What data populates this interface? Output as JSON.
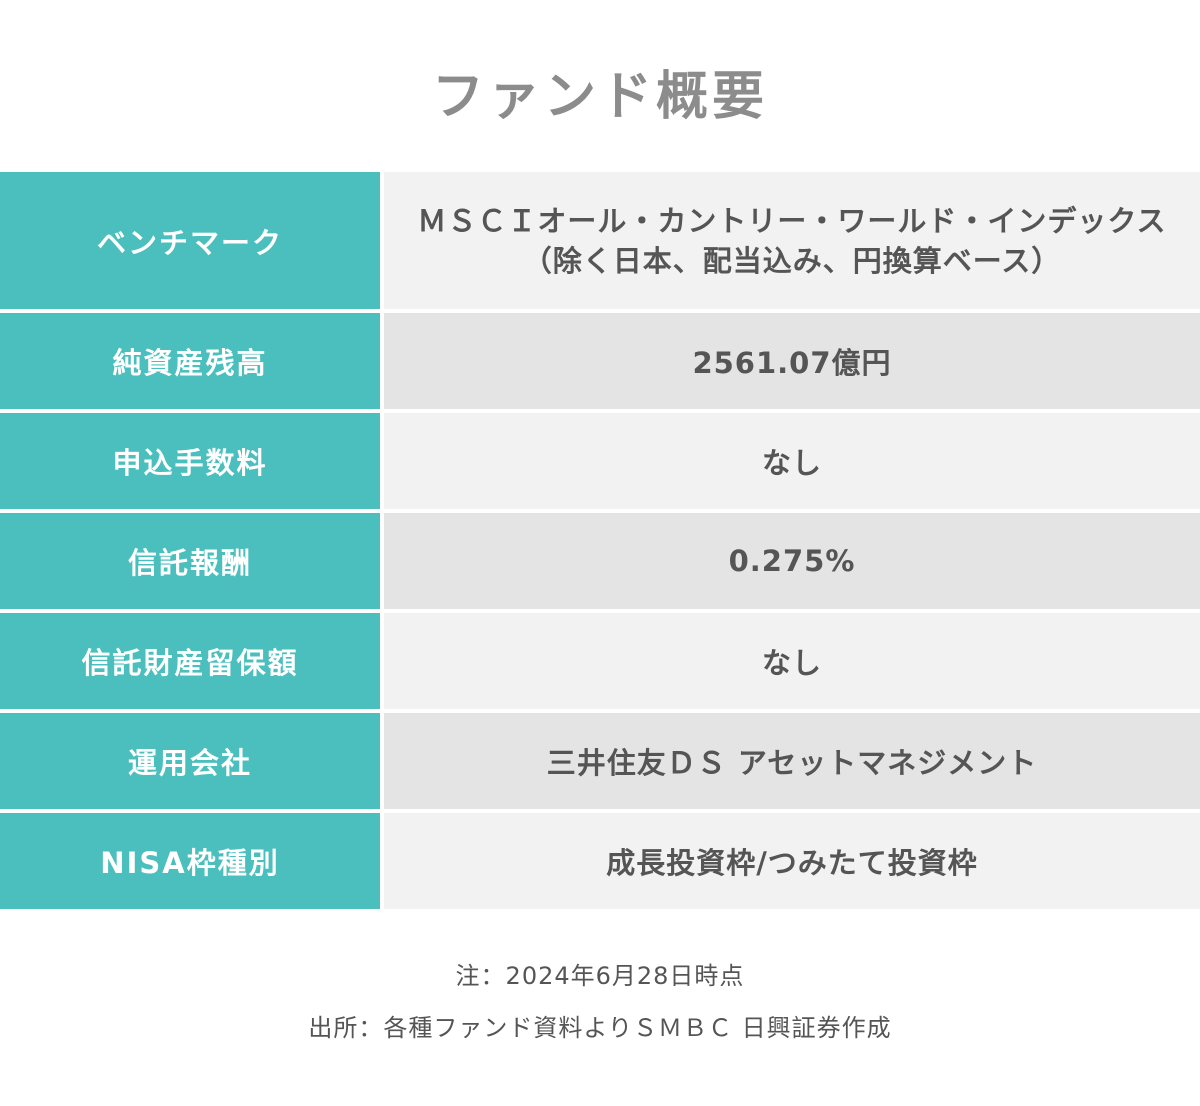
{
  "title": "ファンド概要",
  "rows": [
    {
      "label": "ベンチマーク",
      "value_lines": [
        "ＭＳＣＩオール・カントリー・ワールド・インデックス",
        "（除く日本、配当込み、円換算ベース）"
      ]
    },
    {
      "label": "純資産残高",
      "value": "2561.07億円"
    },
    {
      "label": "申込手数料",
      "value": "なし"
    },
    {
      "label": "信託報酬",
      "value": "0.275%"
    },
    {
      "label": "信託財産留保額",
      "value": "なし"
    },
    {
      "label": "運用会社",
      "value": "三井住友ＤＳ アセットマネジメント"
    },
    {
      "label": "NISA枠種別",
      "value": "成長投資枠/つみたて投資枠"
    }
  ],
  "notes": {
    "note": "注：2024年6月28日時点",
    "source": "出所：各種ファンド資料よりＳＭＢＣ 日興証券作成"
  },
  "colors": {
    "label_bg": "#4bbfbd",
    "value_bg_light": "#f2f2f2",
    "value_bg_dark": "#e4e4e4",
    "title": "#8c8c8c",
    "text": "#555555"
  }
}
